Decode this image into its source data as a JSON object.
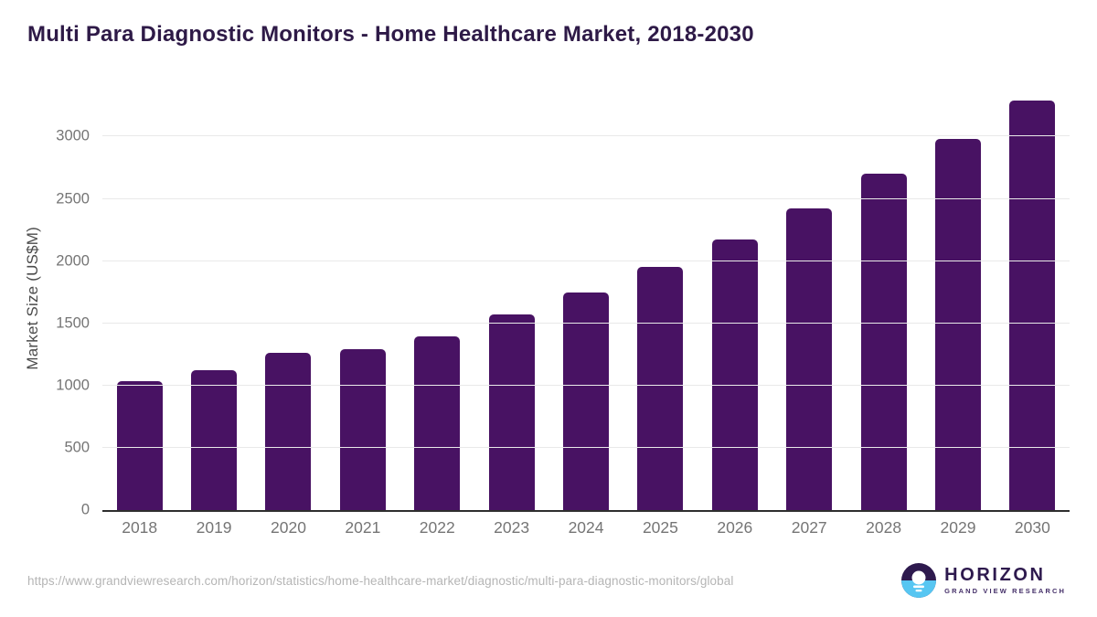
{
  "title": "Multi Para Diagnostic Monitors - Home Healthcare Market, 2018-2030",
  "footer": {
    "source_url": "https://www.grandviewresearch.com/horizon/statistics/home-healthcare-market/diagnostic/multi-para-diagnostic-monitors/global",
    "logo": {
      "name": "HORIZON",
      "subtitle": "GRAND VIEW RESEARCH"
    }
  },
  "colors": {
    "bar": "#481263",
    "title_text": "#2e1a47",
    "axis_tick_text": "#757575",
    "y_axis_title_text": "#4b4b4b",
    "gridline": "#e9e9e9",
    "axis_line": "#2e2e2e",
    "source_url_text": "#b5b5b5",
    "logo_dark": "#2e1a4e",
    "logo_blue": "#57c6f2"
  },
  "chart_data": {
    "type": "bar",
    "title": "Multi Para Diagnostic Monitors - Home Healthcare Market, 2018-2030",
    "categories": [
      "2018",
      "2019",
      "2020",
      "2021",
      "2022",
      "2023",
      "2024",
      "2025",
      "2026",
      "2027",
      "2028",
      "2029",
      "2030"
    ],
    "values": [
      1035,
      1120,
      1260,
      1295,
      1395,
      1570,
      1750,
      1955,
      2175,
      2425,
      2705,
      2985,
      3290
    ],
    "xlabel": "",
    "ylabel": "Market Size (US$M)",
    "ylim": [
      0,
      3400
    ],
    "yticks": [
      0,
      500,
      1000,
      1500,
      2000,
      2500,
      3000
    ],
    "grid": true,
    "legend_position": "none",
    "bar_color": "#481263"
  }
}
